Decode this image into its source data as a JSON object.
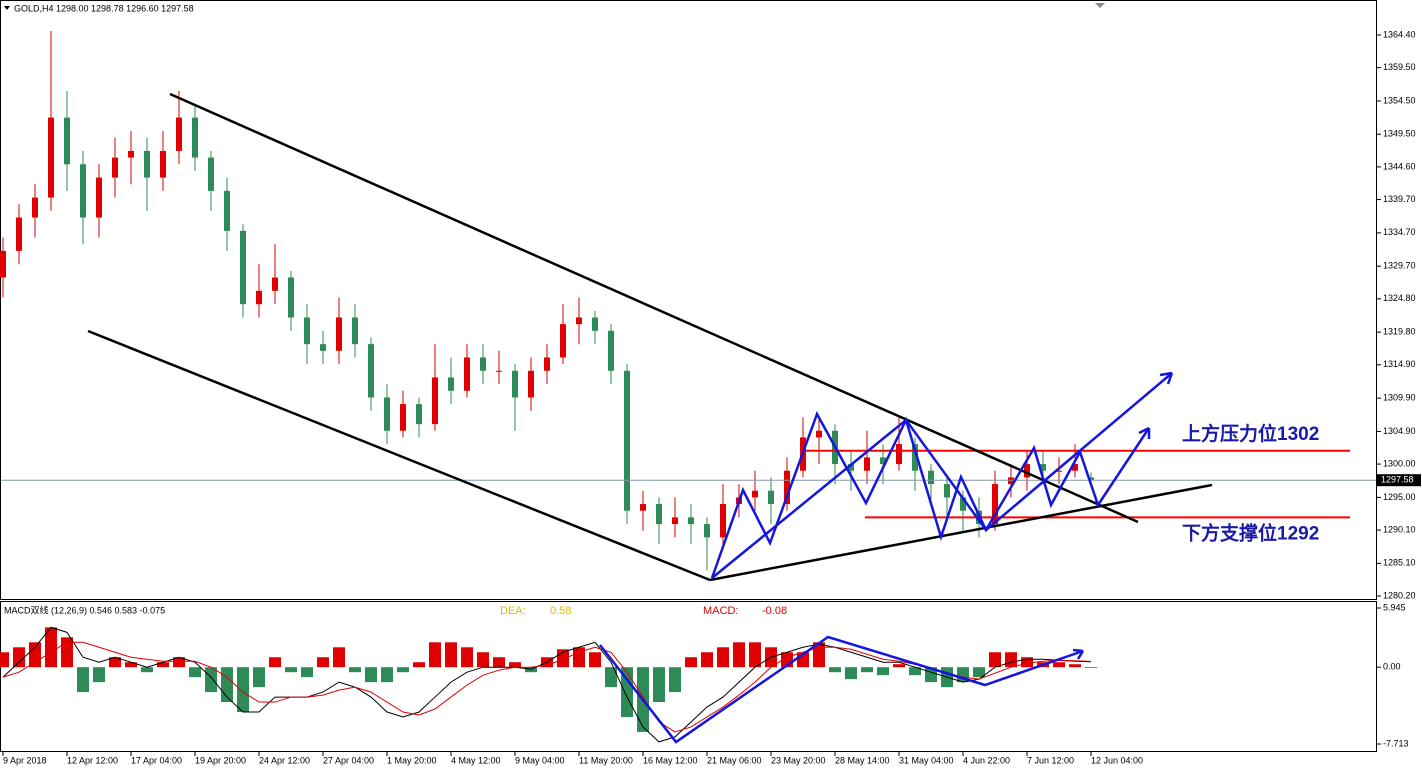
{
  "header": "GOLD,H4  1298.00 1298.78 1296.60 1297.58",
  "chart_data": [
    {
      "type": "candlestick",
      "x": [
        "9 Apr 2018",
        null,
        null,
        null,
        "12 Apr 12:00",
        null,
        null,
        null,
        "17 Apr 04:00",
        null,
        null,
        null,
        "19 Apr 20:00",
        null,
        null,
        null,
        "24 Apr 12:00",
        null,
        null,
        null,
        "27 Apr 04:00",
        null,
        null,
        null,
        "1 May 20:00",
        null,
        null,
        null,
        "4 May 12:00",
        null,
        null,
        null,
        "9 May 04:00",
        null,
        null,
        null,
        "11 May 20:00",
        null,
        null,
        null,
        "16 May 12:00",
        null,
        null,
        null,
        "21 May 06:00",
        null,
        null,
        null,
        "23 May 20:00",
        null,
        null,
        null,
        "28 May 14:00",
        null,
        null,
        null,
        "31 May 04:00",
        null,
        null,
        null,
        "4 Jun 22:00",
        null,
        null,
        null,
        "7 Jun 12:00",
        null,
        null,
        null,
        "12 Jun 04:00"
      ],
      "candles": [
        [
          1328,
          1334,
          1325,
          1332
        ],
        [
          1332,
          1339,
          1330,
          1337
        ],
        [
          1337,
          1342,
          1334,
          1340
        ],
        [
          1340,
          1365,
          1338,
          1352
        ],
        [
          1352,
          1356,
          1341,
          1345
        ],
        [
          1345,
          1347,
          1333,
          1337
        ],
        [
          1337,
          1345,
          1334,
          1343
        ],
        [
          1343,
          1349,
          1340,
          1346
        ],
        [
          1346,
          1350,
          1342,
          1347
        ],
        [
          1347,
          1349,
          1338,
          1343
        ],
        [
          1343,
          1350,
          1341,
          1347
        ],
        [
          1347,
          1356,
          1345,
          1352
        ],
        [
          1352,
          1354,
          1344,
          1346
        ],
        [
          1346,
          1347,
          1338,
          1341
        ],
        [
          1341,
          1343,
          1332,
          1335
        ],
        [
          1335,
          1336,
          1322,
          1324
        ],
        [
          1324,
          1330,
          1322,
          1326
        ],
        [
          1326,
          1333,
          1324,
          1328
        ],
        [
          1328,
          1329,
          1320,
          1322
        ],
        [
          1322,
          1324,
          1315,
          1318
        ],
        [
          1318,
          1320,
          1315,
          1317
        ],
        [
          1317,
          1325,
          1315,
          1322
        ],
        [
          1322,
          1324,
          1316,
          1318
        ],
        [
          1318,
          1319,
          1308,
          1310
        ],
        [
          1310,
          1312,
          1303,
          1305
        ],
        [
          1305,
          1311,
          1304,
          1309
        ],
        [
          1309,
          1310,
          1304,
          1306
        ],
        [
          1306,
          1318,
          1305,
          1313
        ],
        [
          1313,
          1316,
          1309,
          1311
        ],
        [
          1311,
          1318,
          1310,
          1316
        ],
        [
          1316,
          1318,
          1312,
          1314
        ],
        [
          1314,
          1317,
          1312,
          1314
        ],
        [
          1314,
          1315,
          1305,
          1310
        ],
        [
          1310,
          1316,
          1308,
          1314
        ],
        [
          1314,
          1318,
          1312,
          1316
        ],
        [
          1316,
          1324,
          1315,
          1321
        ],
        [
          1321,
          1325,
          1318,
          1322
        ],
        [
          1322,
          1323,
          1318,
          1320
        ],
        [
          1320,
          1321,
          1312,
          1314
        ],
        [
          1314,
          1315,
          1291,
          1293
        ],
        [
          1293,
          1296,
          1290,
          1294
        ],
        [
          1294,
          1295,
          1288,
          1291
        ],
        [
          1291,
          1295,
          1289,
          1292
        ],
        [
          1292,
          1294,
          1288,
          1291
        ],
        [
          1291,
          1292,
          1284,
          1289
        ],
        [
          1289,
          1297,
          1288,
          1294
        ],
        [
          1294,
          1297,
          1292,
          1295
        ],
        [
          1295,
          1299,
          1293,
          1296
        ],
        [
          1296,
          1298,
          1291,
          1294
        ],
        [
          1294,
          1301,
          1293,
          1299
        ],
        [
          1299,
          1307,
          1298,
          1304
        ],
        [
          1304,
          1307,
          1300,
          1305
        ],
        [
          1305,
          1306,
          1297,
          1300
        ],
        [
          1300,
          1302,
          1296,
          1299
        ],
        [
          1299,
          1305,
          1297,
          1301
        ],
        [
          1301,
          1303,
          1297,
          1300
        ],
        [
          1300,
          1307,
          1299,
          1303
        ],
        [
          1303,
          1304,
          1296,
          1299
        ],
        [
          1299,
          1300,
          1294,
          1297
        ],
        [
          1297,
          1298,
          1292,
          1295
        ],
        [
          1295,
          1296,
          1290,
          1293
        ],
        [
          1293,
          1295,
          1289,
          1291
        ],
        [
          1291,
          1299,
          1290,
          1297
        ],
        [
          1297,
          1300,
          1295,
          1298
        ],
        [
          1298,
          1302,
          1296,
          1300
        ],
        [
          1300,
          1302,
          1297,
          1299
        ],
        [
          1299,
          1301,
          1297,
          1299
        ],
        [
          1299,
          1303,
          1298,
          1300
        ],
        [
          1298.0,
          1298.78,
          1296.6,
          1297.58
        ]
      ],
      "up_color": "#e00000",
      "down_color": "#2e8b57",
      "ylim": [
        1279.9,
        1369.35
      ],
      "yticks": [
        {
          "value": 1364.4,
          "label": "1364.40"
        },
        {
          "value": 1359.5,
          "label": "1359.50"
        },
        {
          "value": 1354.5,
          "label": "1354.50"
        },
        {
          "value": 1349.5,
          "label": "1349.50"
        },
        {
          "value": 1344.6,
          "label": "1344.60"
        },
        {
          "value": 1339.7,
          "label": "1339.70"
        },
        {
          "value": 1334.7,
          "label": "1334.70"
        },
        {
          "value": 1329.7,
          "label": "1329.70"
        },
        {
          "value": 1324.8,
          "label": "1324.80"
        },
        {
          "value": 1319.8,
          "label": "1319.80"
        },
        {
          "value": 1314.9,
          "label": "1314.90"
        },
        {
          "value": 1309.9,
          "label": "1309.90"
        },
        {
          "value": 1304.9,
          "label": "1304.90"
        },
        {
          "value": 1300,
          "label": "1300.00"
        },
        {
          "value": 1295,
          "label": "1295.00"
        },
        {
          "value": 1290.1,
          "label": "1290.10"
        },
        {
          "value": 1285.1,
          "label": "1285.10"
        },
        {
          "value": 1280.2,
          "label": "1280.20"
        }
      ],
      "last_price": 1297.58,
      "levels": [
        {
          "value": 1302,
          "label": "上方压力位1302",
          "color": "#ff0000"
        },
        {
          "value": 1292,
          "label": "下方支撑位1292",
          "color": "#ff0000"
        }
      ]
    },
    {
      "type": "macd",
      "title": "MACD双线 (12,26,9) 0.546 0.583 -0.075",
      "dea_label": "DEA:",
      "dea_value": 0.58,
      "macd_label": "MACD:",
      "macd_value": -0.08,
      "ylim": [
        -8.316,
        6.548
      ],
      "yticks": [
        5.945,
        {
          "value": 0,
          "label": "0.00"
        },
        -7.713
      ],
      "series": [
        {
          "style": "bar",
          "color": "#e00000",
          "neg_color": "#2e8b57",
          "values": [
            1.5,
            2,
            2.5,
            4,
            3,
            -2.5,
            -1.5,
            1,
            0.5,
            -0.5,
            0.5,
            1,
            -1,
            -2.5,
            -3.5,
            -4.5,
            -2,
            1,
            -0.5,
            -1,
            1,
            2,
            -0.5,
            -1.5,
            -1.5,
            -0.5,
            0.5,
            2.5,
            2.5,
            2,
            1.5,
            1,
            0.5,
            -0.5,
            1,
            1.8,
            2,
            1.5,
            -2,
            -5,
            -6.5,
            -3.5,
            -2.5,
            1,
            1.5,
            2,
            2.5,
            2.5,
            2,
            1.5,
            1.5,
            2.5,
            -0.5,
            -1.2,
            -0.5,
            -0.8,
            0.3,
            -0.8,
            -1.5,
            -2,
            -1.5,
            -1,
            1.5,
            1.5,
            1,
            0.5,
            0.5,
            0.3,
            -0.08
          ]
        },
        {
          "style": "line",
          "color": "#000000",
          "values": [
            -1,
            0.5,
            2,
            4,
            3.5,
            1,
            0.5,
            1,
            0.5,
            0,
            0.5,
            1,
            0.5,
            -1,
            -3,
            -4.5,
            -4.5,
            -3,
            -3,
            -3,
            -2.5,
            -1.5,
            -2,
            -3,
            -4.5,
            -5,
            -4.5,
            -3,
            -1.5,
            -0.5,
            0,
            0,
            0,
            -0.2,
            0.5,
            1.5,
            2,
            2.5,
            0.5,
            -3,
            -6,
            -7.5,
            -7,
            -5.5,
            -4,
            -3,
            -1.5,
            0,
            1,
            1.5,
            2,
            2.3,
            2,
            1.5,
            1,
            0.5,
            0.5,
            0,
            -0.5,
            -1,
            -1.5,
            -1.2,
            0,
            0.5,
            0.8,
            0.8,
            0.7,
            0.6,
            0.546
          ]
        },
        {
          "style": "line",
          "color": "#e00000",
          "values": [
            -1,
            -0.5,
            0.5,
            1.5,
            2.5,
            2.5,
            2,
            1.5,
            1,
            0.8,
            0.6,
            0.6,
            0.6,
            0,
            -1,
            -2.5,
            -3.5,
            -3.5,
            -3,
            -3,
            -2.8,
            -2.3,
            -2,
            -2.5,
            -3.5,
            -4.5,
            -4.8,
            -4.2,
            -3,
            -1.8,
            -0.8,
            -0.3,
            0,
            0,
            0.2,
            0.8,
            1.5,
            2,
            1.5,
            -0.5,
            -3,
            -5.5,
            -6.5,
            -6,
            -5,
            -4,
            -2.8,
            -1.5,
            0,
            1,
            1.5,
            2,
            2,
            1.8,
            1.3,
            0.8,
            0.6,
            0.3,
            -0.2,
            -0.6,
            -1,
            -1.2,
            -0.6,
            0,
            0.4,
            0.6,
            0.7,
            0.65,
            0.583
          ]
        }
      ]
    }
  ]
}
